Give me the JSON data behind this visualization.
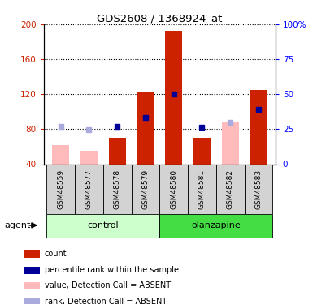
{
  "title": "GDS2608 / 1368924_at",
  "samples": [
    "GSM48559",
    "GSM48577",
    "GSM48578",
    "GSM48579",
    "GSM48580",
    "GSM48581",
    "GSM48582",
    "GSM48583"
  ],
  "red_bars": [
    null,
    null,
    70,
    123,
    193,
    70,
    null,
    125
  ],
  "pink_bars": [
    62,
    55,
    null,
    null,
    null,
    null,
    88,
    null
  ],
  "blue_squares_left": [
    null,
    null,
    83,
    93,
    120,
    82,
    null,
    103
  ],
  "lavender_squares_left": [
    83,
    79,
    null,
    null,
    null,
    null,
    88,
    null
  ],
  "ylim_left": [
    40,
    200
  ],
  "yticks_left": [
    40,
    80,
    120,
    160,
    200
  ],
  "yticks_right": [
    0,
    25,
    50,
    75,
    100
  ],
  "yticklabels_right": [
    "0",
    "25",
    "50",
    "75",
    "100%"
  ],
  "color_red": "#cc2200",
  "color_pink": "#ffbbbb",
  "color_blue": "#000099",
  "color_lavender": "#aaaadd",
  "color_control_bg_light": "#ccffcc",
  "color_control_bg_dark": "#44dd44",
  "color_olanzapine_bg": "#44dd44",
  "color_sample_bg": "#d3d3d3",
  "legend_items": [
    {
      "color": "#cc2200",
      "label": "count"
    },
    {
      "color": "#000099",
      "label": "percentile rank within the sample"
    },
    {
      "color": "#ffbbbb",
      "label": "value, Detection Call = ABSENT"
    },
    {
      "color": "#aaaadd",
      "label": "rank, Detection Call = ABSENT"
    }
  ]
}
